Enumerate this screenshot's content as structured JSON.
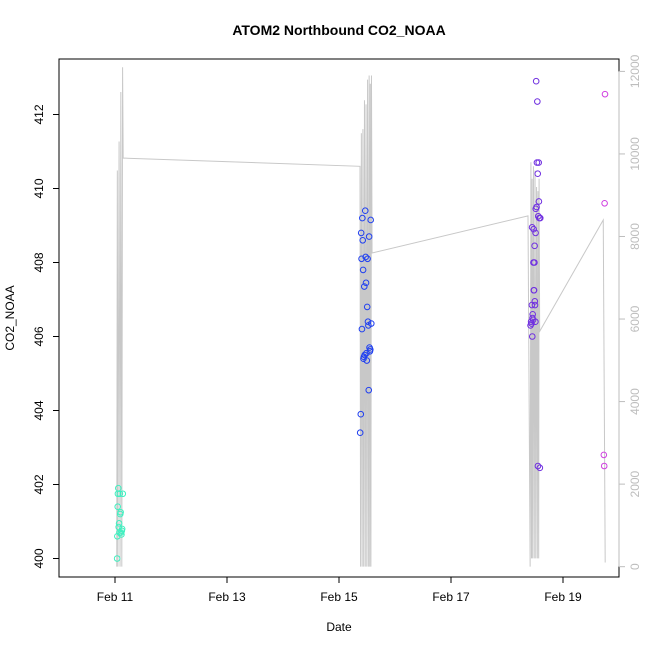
{
  "chart_data": {
    "type": "scatter",
    "title": "ATOM2 Northbound CO2_NOAA",
    "xlabel": "Date",
    "ylabel": "CO2_NOAA",
    "x_axis": {
      "type": "date",
      "range": [
        "2017-02-10",
        "2017-02-20"
      ],
      "ticks": [
        {
          "date": "2017-02-11",
          "label": "Feb 11"
        },
        {
          "date": "2017-02-13",
          "label": "Feb 13"
        },
        {
          "date": "2017-02-15",
          "label": "Feb 15"
        },
        {
          "date": "2017-02-17",
          "label": "Feb 17"
        },
        {
          "date": "2017-02-19",
          "label": "Feb 19"
        }
      ]
    },
    "y_axis": {
      "range": [
        399.5,
        413.5
      ],
      "ticks": [
        400,
        402,
        404,
        406,
        408,
        410,
        412
      ]
    },
    "y2_axis": {
      "range": [
        -250,
        12300
      ],
      "ticks": [
        0,
        2000,
        4000,
        6000,
        8000,
        10000,
        12000
      ],
      "color": "#bdbdbd"
    },
    "grid": false,
    "line_color": "#c8c8c8",
    "point_style": "open-circle",
    "series": [
      {
        "color": "#40f0c0",
        "points": [
          [
            "2017-02-11T00:55",
            400.0
          ],
          [
            "2017-02-11T01:00",
            400.6
          ],
          [
            "2017-02-11T01:10",
            401.4
          ],
          [
            "2017-02-11T01:15",
            401.75
          ],
          [
            "2017-02-11T01:25",
            401.9
          ],
          [
            "2017-02-11T01:35",
            400.85
          ],
          [
            "2017-02-11T01:45",
            400.95
          ],
          [
            "2017-02-11T01:55",
            400.7
          ],
          [
            "2017-02-11T02:05",
            401.75
          ],
          [
            "2017-02-11T02:15",
            401.2
          ],
          [
            "2017-02-11T02:25",
            401.25
          ],
          [
            "2017-02-11T02:35",
            400.7
          ],
          [
            "2017-02-11T02:45",
            400.65
          ],
          [
            "2017-02-11T02:55",
            400.75
          ],
          [
            "2017-02-11T03:05",
            400.8
          ],
          [
            "2017-02-11T03:20",
            401.75
          ]
        ]
      },
      {
        "color": "#2040f0",
        "points": [
          [
            "2017-02-15T09:05",
            403.4
          ],
          [
            "2017-02-15T09:20",
            403.9
          ],
          [
            "2017-02-15T09:30",
            408.8
          ],
          [
            "2017-02-15T09:40",
            408.1
          ],
          [
            "2017-02-15T09:50",
            406.2
          ],
          [
            "2017-02-15T10:00",
            409.2
          ],
          [
            "2017-02-15T10:10",
            408.6
          ],
          [
            "2017-02-15T10:20",
            407.8
          ],
          [
            "2017-02-15T10:30",
            405.4
          ],
          [
            "2017-02-15T10:40",
            405.45
          ],
          [
            "2017-02-15T10:50",
            407.35
          ],
          [
            "2017-02-15T11:00",
            405.5
          ],
          [
            "2017-02-15T11:15",
            409.4
          ],
          [
            "2017-02-15T11:25",
            408.15
          ],
          [
            "2017-02-15T11:35",
            407.45
          ],
          [
            "2017-02-15T11:45",
            405.55
          ],
          [
            "2017-02-15T11:55",
            405.35
          ],
          [
            "2017-02-15T12:05",
            406.8
          ],
          [
            "2017-02-15T12:15",
            408.1
          ],
          [
            "2017-02-15T12:25",
            406.4
          ],
          [
            "2017-02-15T12:35",
            406.3
          ],
          [
            "2017-02-15T12:45",
            404.55
          ],
          [
            "2017-02-15T12:55",
            408.7
          ],
          [
            "2017-02-15T13:05",
            405.7
          ],
          [
            "2017-02-15T13:15",
            405.6
          ],
          [
            "2017-02-15T13:25",
            405.65
          ],
          [
            "2017-02-15T13:35",
            409.15
          ],
          [
            "2017-02-15T13:50",
            406.35
          ]
        ]
      },
      {
        "color": "#7030e0",
        "points": [
          [
            "2017-02-18T10:05",
            406.3
          ],
          [
            "2017-02-18T10:20",
            406.4
          ],
          [
            "2017-02-18T10:30",
            406.35
          ],
          [
            "2017-02-18T10:40",
            406.85
          ],
          [
            "2017-02-18T10:45",
            408.95
          ],
          [
            "2017-02-18T10:50",
            406.0
          ],
          [
            "2017-02-18T10:55",
            406.5
          ],
          [
            "2017-02-18T11:00",
            406.6
          ],
          [
            "2017-02-18T11:10",
            406.45
          ],
          [
            "2017-02-18T11:20",
            408.0
          ],
          [
            "2017-02-18T11:25",
            408.9
          ],
          [
            "2017-02-18T11:30",
            407.25
          ],
          [
            "2017-02-18T11:35",
            407.25
          ],
          [
            "2017-02-18T11:45",
            408.0
          ],
          [
            "2017-02-18T11:50",
            408.45
          ],
          [
            "2017-02-18T11:55",
            406.95
          ],
          [
            "2017-02-18T12:00",
            406.85
          ],
          [
            "2017-02-18T12:10",
            406.4
          ],
          [
            "2017-02-18T12:15",
            408.8
          ],
          [
            "2017-02-18T12:20",
            409.45
          ],
          [
            "2017-02-18T12:30",
            412.9
          ],
          [
            "2017-02-18T12:40",
            409.5
          ],
          [
            "2017-02-18T12:50",
            410.7
          ],
          [
            "2017-02-18T13:00",
            412.35
          ],
          [
            "2017-02-18T13:10",
            410.4
          ],
          [
            "2017-02-18T13:15",
            402.5
          ],
          [
            "2017-02-18T13:25",
            409.25
          ],
          [
            "2017-02-18T13:35",
            410.7
          ],
          [
            "2017-02-18T13:40",
            409.65
          ],
          [
            "2017-02-18T13:50",
            409.2
          ],
          [
            "2017-02-18T14:05",
            402.45
          ],
          [
            "2017-02-18T14:15",
            409.2
          ]
        ]
      },
      {
        "color": "#d040e0",
        "points": [
          [
            "2017-02-19T17:30",
            402.8
          ],
          [
            "2017-02-19T17:40",
            402.5
          ],
          [
            "2017-02-19T17:50",
            409.6
          ],
          [
            "2017-02-19T18:00",
            412.55
          ]
        ]
      }
    ],
    "altitude_line": [
      [
        "2017-02-11T00:45",
        0
      ],
      [
        "2017-02-11T01:00",
        9600
      ],
      [
        "2017-02-11T01:15",
        0
      ],
      [
        "2017-02-11T01:45",
        10300
      ],
      [
        "2017-02-11T02:10",
        0
      ],
      [
        "2017-02-11T02:30",
        11500
      ],
      [
        "2017-02-11T02:55",
        0
      ],
      [
        "2017-02-11T03:15",
        12100
      ],
      [
        "2017-02-11T03:30",
        9900
      ],
      [
        "2017-02-15T09:00",
        9700
      ],
      [
        "2017-02-15T09:15",
        0
      ],
      [
        "2017-02-15T09:35",
        10500
      ],
      [
        "2017-02-15T09:55",
        0
      ],
      [
        "2017-02-15T10:15",
        10600
      ],
      [
        "2017-02-15T10:35",
        0
      ],
      [
        "2017-02-15T10:55",
        11300
      ],
      [
        "2017-02-15T11:15",
        0
      ],
      [
        "2017-02-15T11:35",
        11200
      ],
      [
        "2017-02-15T11:55",
        0
      ],
      [
        "2017-02-15T12:15",
        11800
      ],
      [
        "2017-02-15T12:35",
        0
      ],
      [
        "2017-02-15T12:55",
        11900
      ],
      [
        "2017-02-15T13:10",
        0
      ],
      [
        "2017-02-15T13:25",
        11700
      ],
      [
        "2017-02-15T13:40",
        0
      ],
      [
        "2017-02-15T13:55",
        11900
      ],
      [
        "2017-02-15T14:10",
        7600
      ],
      [
        "2017-02-18T09:00",
        8500
      ],
      [
        "2017-02-18T09:55",
        0
      ],
      [
        "2017-02-18T10:15",
        9800
      ],
      [
        "2017-02-18T10:30",
        200
      ],
      [
        "2017-02-18T10:45",
        9400
      ],
      [
        "2017-02-18T11:00",
        200
      ],
      [
        "2017-02-18T11:20",
        9700
      ],
      [
        "2017-02-18T11:40",
        200
      ],
      [
        "2017-02-18T12:00",
        9600
      ],
      [
        "2017-02-18T12:20",
        200
      ],
      [
        "2017-02-18T12:40",
        9200
      ],
      [
        "2017-02-18T13:00",
        200
      ],
      [
        "2017-02-18T13:15",
        9100
      ],
      [
        "2017-02-18T13:35",
        200
      ],
      [
        "2017-02-18T13:45",
        9400
      ],
      [
        "2017-02-18T14:00",
        5700
      ],
      [
        "2017-02-19T17:15",
        8400
      ],
      [
        "2017-02-19T18:05",
        100
      ]
    ]
  }
}
